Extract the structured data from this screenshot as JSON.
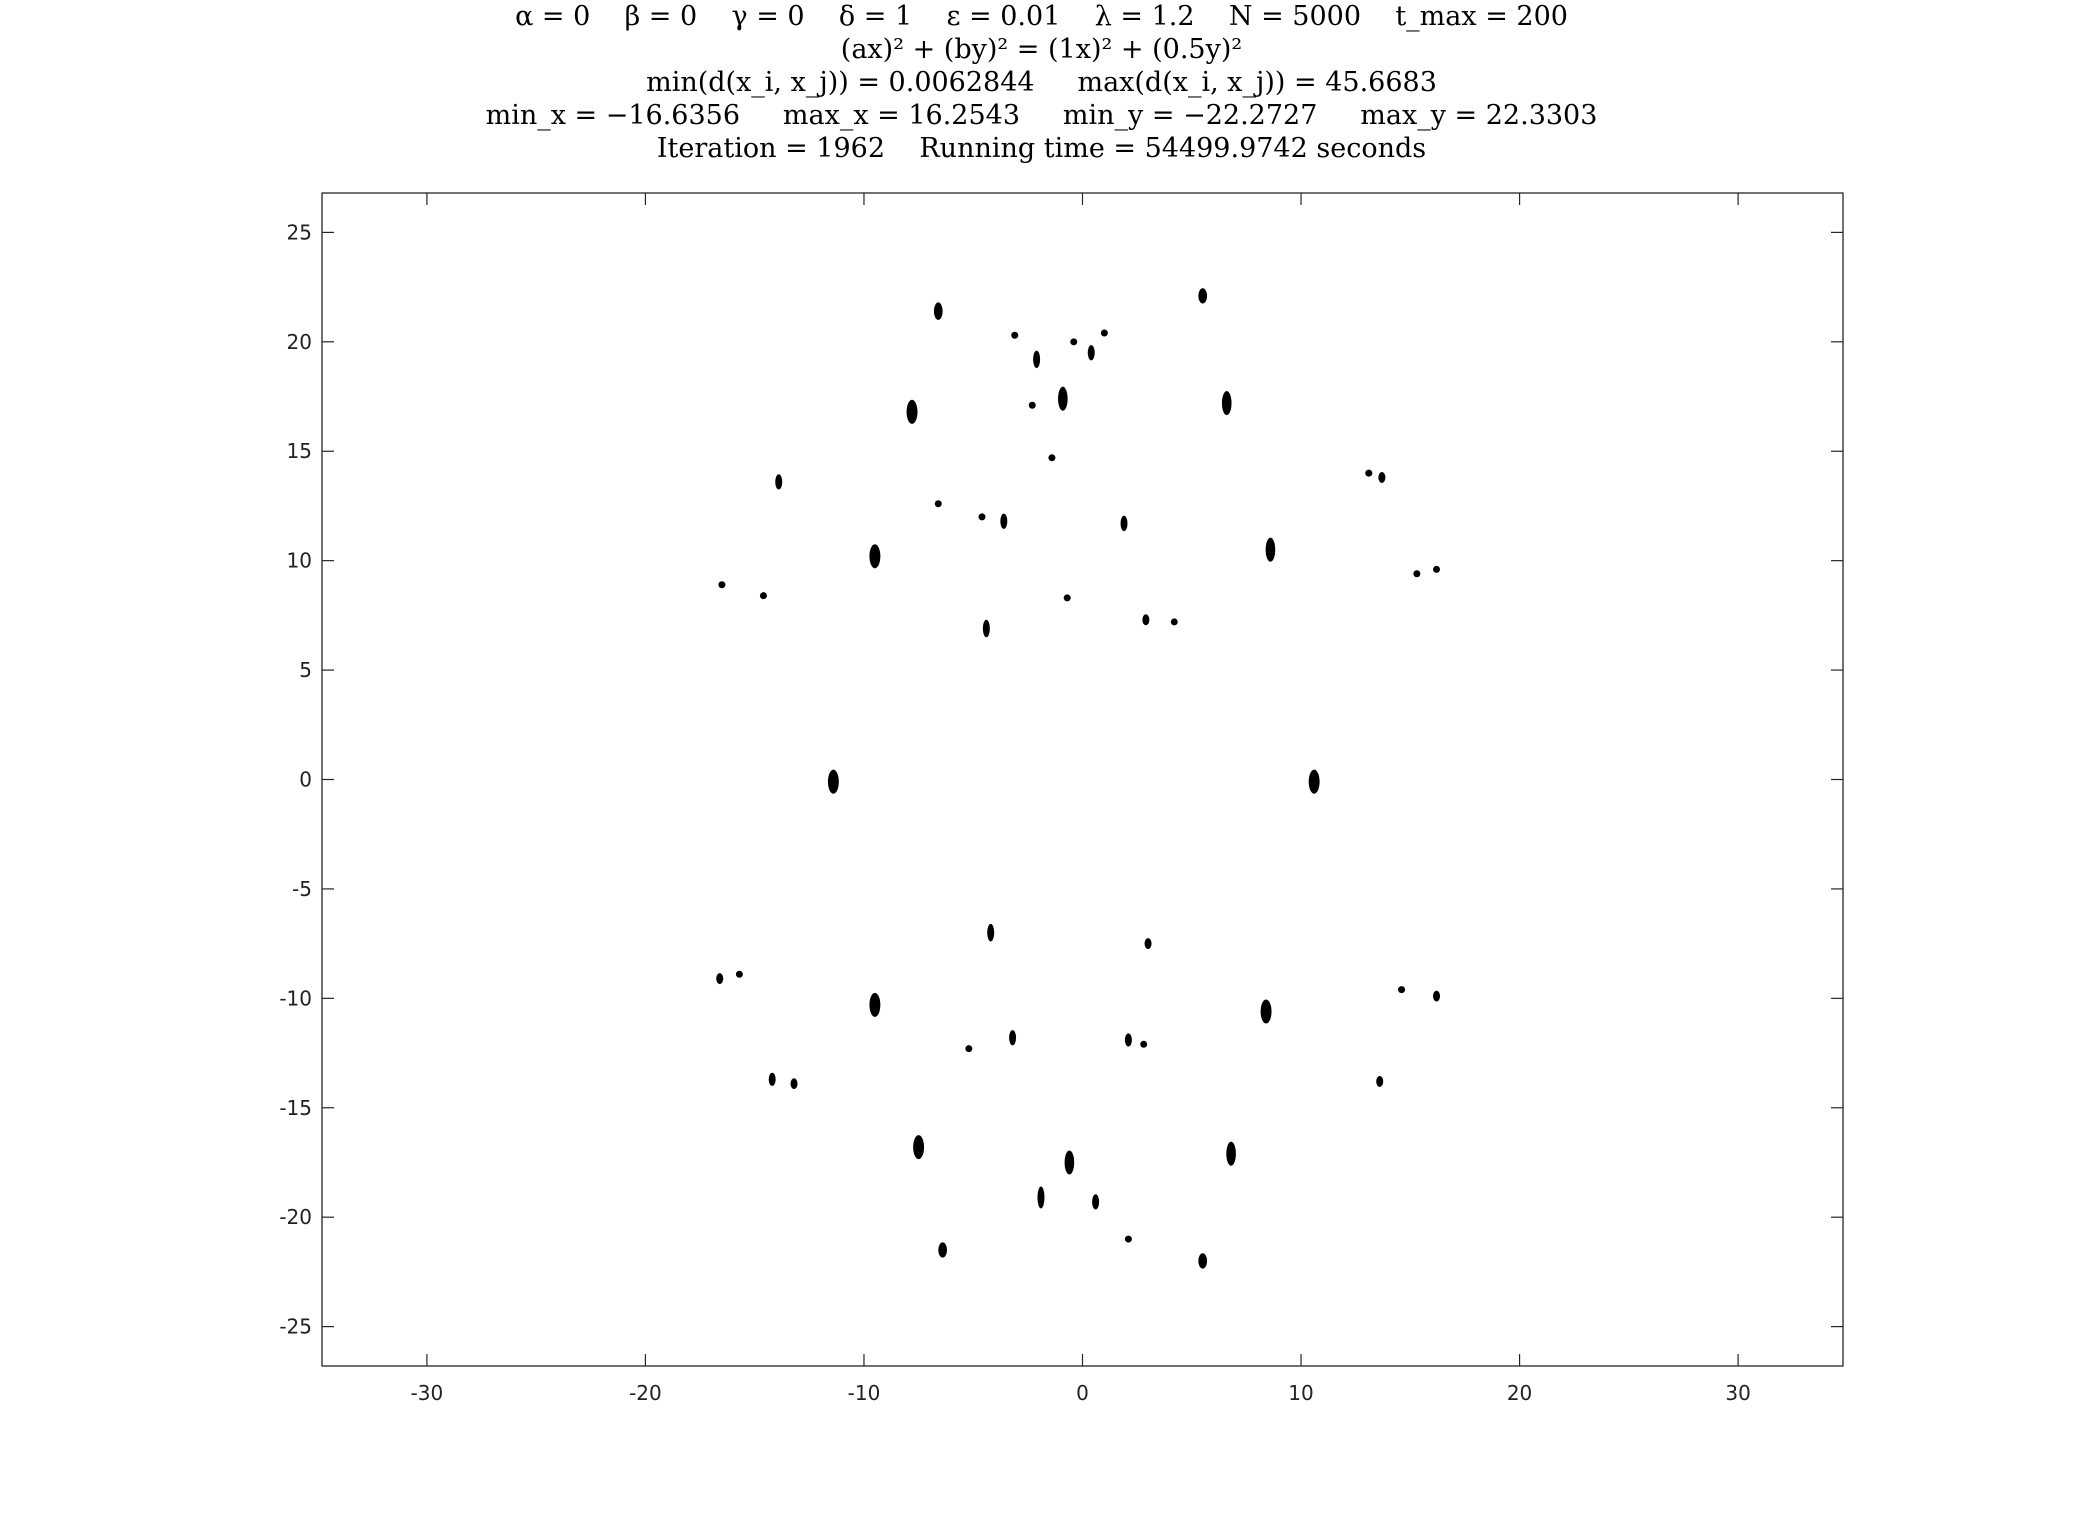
{
  "chart_data": {
    "type": "scatter",
    "title_lines": [
      "α = 0    β = 0    γ = 0    δ = 1    ε = 0.01    λ = 1.2    N = 5000    t_max = 200",
      "(ax)² + (by)² = (1x)² + (0.5y)²",
      "min(d(x_i, x_j)) = 0.0062844     max(d(x_i, x_j)) = 45.6683",
      "min_x = −16.6356     max_x = 16.2543     min_y = −22.2727     max_y = 22.3303",
      "Iteration = 1962    Running time = 54499.9742 seconds"
    ],
    "xlabel": "",
    "ylabel": "",
    "xlim": [
      -34.8,
      34.8
    ],
    "ylim": [
      -26.8,
      26.8
    ],
    "x_ticks": [
      -30,
      -20,
      -10,
      0,
      10,
      20,
      30
    ],
    "y_ticks": [
      25,
      20,
      15,
      10,
      5,
      0,
      -5,
      -10,
      -15,
      -20,
      -25
    ],
    "grid": false,
    "marker_color": "#000000",
    "axes_color": "#262626",
    "clusters": [
      {
        "x": -6.6,
        "y": 21.4,
        "h": 0.8,
        "w": 0.2
      },
      {
        "x": 5.5,
        "y": 22.1,
        "h": 0.7,
        "w": 0.2
      },
      {
        "x": -3.1,
        "y": 20.3,
        "h": 0.3,
        "w": 0.15
      },
      {
        "x": -0.4,
        "y": 20.0,
        "h": 0.3,
        "w": 0.15
      },
      {
        "x": 1.0,
        "y": 20.4,
        "h": 0.3,
        "w": 0.15
      },
      {
        "x": -2.1,
        "y": 19.2,
        "h": 0.8,
        "w": 0.15
      },
      {
        "x": 0.4,
        "y": 19.5,
        "h": 0.7,
        "w": 0.15
      },
      {
        "x": -7.8,
        "y": 16.8,
        "h": 1.1,
        "w": 0.25
      },
      {
        "x": -2.3,
        "y": 17.1,
        "h": 0.3,
        "w": 0.15
      },
      {
        "x": -0.9,
        "y": 17.4,
        "h": 1.1,
        "w": 0.22
      },
      {
        "x": 6.6,
        "y": 17.2,
        "h": 1.1,
        "w": 0.22
      },
      {
        "x": -13.9,
        "y": 13.6,
        "h": 0.7,
        "w": 0.15
      },
      {
        "x": -1.4,
        "y": 14.7,
        "h": 0.3,
        "w": 0.15
      },
      {
        "x": 13.1,
        "y": 14.0,
        "h": 0.3,
        "w": 0.15
      },
      {
        "x": 13.7,
        "y": 13.8,
        "h": 0.5,
        "w": 0.15
      },
      {
        "x": -6.6,
        "y": 12.6,
        "h": 0.3,
        "w": 0.15
      },
      {
        "x": -4.6,
        "y": 12.0,
        "h": 0.3,
        "w": 0.15
      },
      {
        "x": -3.6,
        "y": 11.8,
        "h": 0.7,
        "w": 0.15
      },
      {
        "x": 1.9,
        "y": 11.7,
        "h": 0.7,
        "w": 0.15
      },
      {
        "x": -9.5,
        "y": 10.2,
        "h": 1.1,
        "w": 0.25
      },
      {
        "x": 8.6,
        "y": 10.5,
        "h": 1.1,
        "w": 0.22
      },
      {
        "x": -16.5,
        "y": 8.9,
        "h": 0.3,
        "w": 0.15
      },
      {
        "x": -14.6,
        "y": 8.4,
        "h": 0.3,
        "w": 0.15
      },
      {
        "x": -0.7,
        "y": 8.3,
        "h": 0.3,
        "w": 0.15
      },
      {
        "x": 15.3,
        "y": 9.4,
        "h": 0.3,
        "w": 0.15
      },
      {
        "x": 16.2,
        "y": 9.6,
        "h": 0.3,
        "w": 0.15
      },
      {
        "x": 2.9,
        "y": 7.3,
        "h": 0.5,
        "w": 0.15
      },
      {
        "x": 4.2,
        "y": 7.2,
        "h": 0.3,
        "w": 0.15
      },
      {
        "x": -4.4,
        "y": 6.9,
        "h": 0.8,
        "w": 0.15
      },
      {
        "x": -11.4,
        "y": -0.1,
        "h": 1.1,
        "w": 0.25
      },
      {
        "x": 10.6,
        "y": -0.1,
        "h": 1.1,
        "w": 0.25
      },
      {
        "x": -4.2,
        "y": -7.0,
        "h": 0.8,
        "w": 0.15
      },
      {
        "x": 3.0,
        "y": -7.5,
        "h": 0.5,
        "w": 0.15
      },
      {
        "x": -16.6,
        "y": -9.1,
        "h": 0.5,
        "w": 0.15
      },
      {
        "x": -15.7,
        "y": -8.9,
        "h": 0.3,
        "w": 0.15
      },
      {
        "x": -9.5,
        "y": -10.3,
        "h": 1.1,
        "w": 0.25
      },
      {
        "x": 8.4,
        "y": -10.6,
        "h": 1.1,
        "w": 0.25
      },
      {
        "x": 14.6,
        "y": -9.6,
        "h": 0.3,
        "w": 0.15
      },
      {
        "x": 16.2,
        "y": -9.9,
        "h": 0.5,
        "w": 0.15
      },
      {
        "x": -5.2,
        "y": -12.3,
        "h": 0.3,
        "w": 0.15
      },
      {
        "x": -3.2,
        "y": -11.8,
        "h": 0.7,
        "w": 0.15
      },
      {
        "x": 2.1,
        "y": -11.9,
        "h": 0.6,
        "w": 0.15
      },
      {
        "x": 2.8,
        "y": -12.1,
        "h": 0.3,
        "w": 0.15
      },
      {
        "x": -14.2,
        "y": -13.7,
        "h": 0.6,
        "w": 0.15
      },
      {
        "x": -13.2,
        "y": -13.9,
        "h": 0.5,
        "w": 0.15
      },
      {
        "x": 13.6,
        "y": -13.8,
        "h": 0.5,
        "w": 0.15
      },
      {
        "x": -7.5,
        "y": -16.8,
        "h": 1.1,
        "w": 0.25
      },
      {
        "x": -0.6,
        "y": -17.5,
        "h": 1.1,
        "w": 0.22
      },
      {
        "x": 6.8,
        "y": -17.1,
        "h": 1.1,
        "w": 0.22
      },
      {
        "x": -1.9,
        "y": -19.1,
        "h": 1.0,
        "w": 0.15
      },
      {
        "x": 0.6,
        "y": -19.3,
        "h": 0.7,
        "w": 0.15
      },
      {
        "x": 2.1,
        "y": -21.0,
        "h": 0.3,
        "w": 0.15
      },
      {
        "x": -6.4,
        "y": -21.5,
        "h": 0.7,
        "w": 0.2
      },
      {
        "x": 5.5,
        "y": -22.0,
        "h": 0.7,
        "w": 0.2
      }
    ]
  }
}
